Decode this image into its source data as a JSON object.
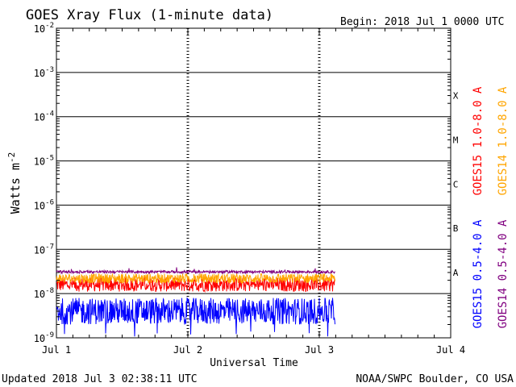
{
  "chart_data": {
    "type": "line",
    "title": "GOES Xray Flux (1-minute data)",
    "begin_label": "Begin:  2018 Jul 1 0000 UTC",
    "ylabel_main": "Watts m",
    "ylabel_exp": "-2",
    "xlabel": "Universal Time",
    "yscale": "log",
    "ylim": [
      1e-09,
      0.01
    ],
    "xlim": [
      0,
      3
    ],
    "grid": true,
    "y_ticks": [
      {
        "exp": "-2",
        "value": 0.01
      },
      {
        "exp": "-3",
        "value": 0.001
      },
      {
        "exp": "-4",
        "value": 0.0001
      },
      {
        "exp": "-5",
        "value": 1e-05
      },
      {
        "exp": "-6",
        "value": 1e-06
      },
      {
        "exp": "-7",
        "value": 1e-07
      },
      {
        "exp": "-8",
        "value": 1e-08
      },
      {
        "exp": "-9",
        "value": 1e-09
      }
    ],
    "x_ticks": [
      {
        "label": "Jul 1",
        "value": 0
      },
      {
        "label": "Jul 2",
        "value": 1
      },
      {
        "label": "Jul 3",
        "value": 2
      },
      {
        "label": "Jul 4",
        "value": 3
      }
    ],
    "flare_classes": [
      {
        "label": "X",
        "value": 0.0003
      },
      {
        "label": "M",
        "value": 3e-05
      },
      {
        "label": "C",
        "value": 3e-06
      },
      {
        "label": "B",
        "value": 3e-07
      },
      {
        "label": "A",
        "value": 3e-08
      }
    ],
    "series": [
      {
        "name": "GOES15 1.0-8.0 A",
        "color": "#ff0000",
        "x_end": 2.12,
        "baseline": 1.6e-08,
        "jitter": 0.32,
        "spike_min": 1.3e-08
      },
      {
        "name": "GOES14 1.0-8.0 A",
        "color": "#ffa500",
        "x_end": 2.12,
        "baseline": 2.2e-08,
        "jitter": 0.22,
        "spike_min": 1.8e-08
      },
      {
        "name": "GOES15 0.5-4.0 A",
        "color": "#0000ff",
        "x_end": 2.12,
        "baseline": 4e-09,
        "jitter": 0.6,
        "spike_min": 1e-09
      },
      {
        "name": "GOES14 0.5-4.0 A",
        "color": "#800080",
        "x_end": 2.12,
        "baseline": 3.1e-08,
        "jitter": 0.06,
        "spike_min": 2.8e-08
      }
    ]
  },
  "footer": {
    "updated": "Updated 2018 Jul  3 02:38:11 UTC",
    "source": "NOAA/SWPC Boulder, CO USA"
  }
}
